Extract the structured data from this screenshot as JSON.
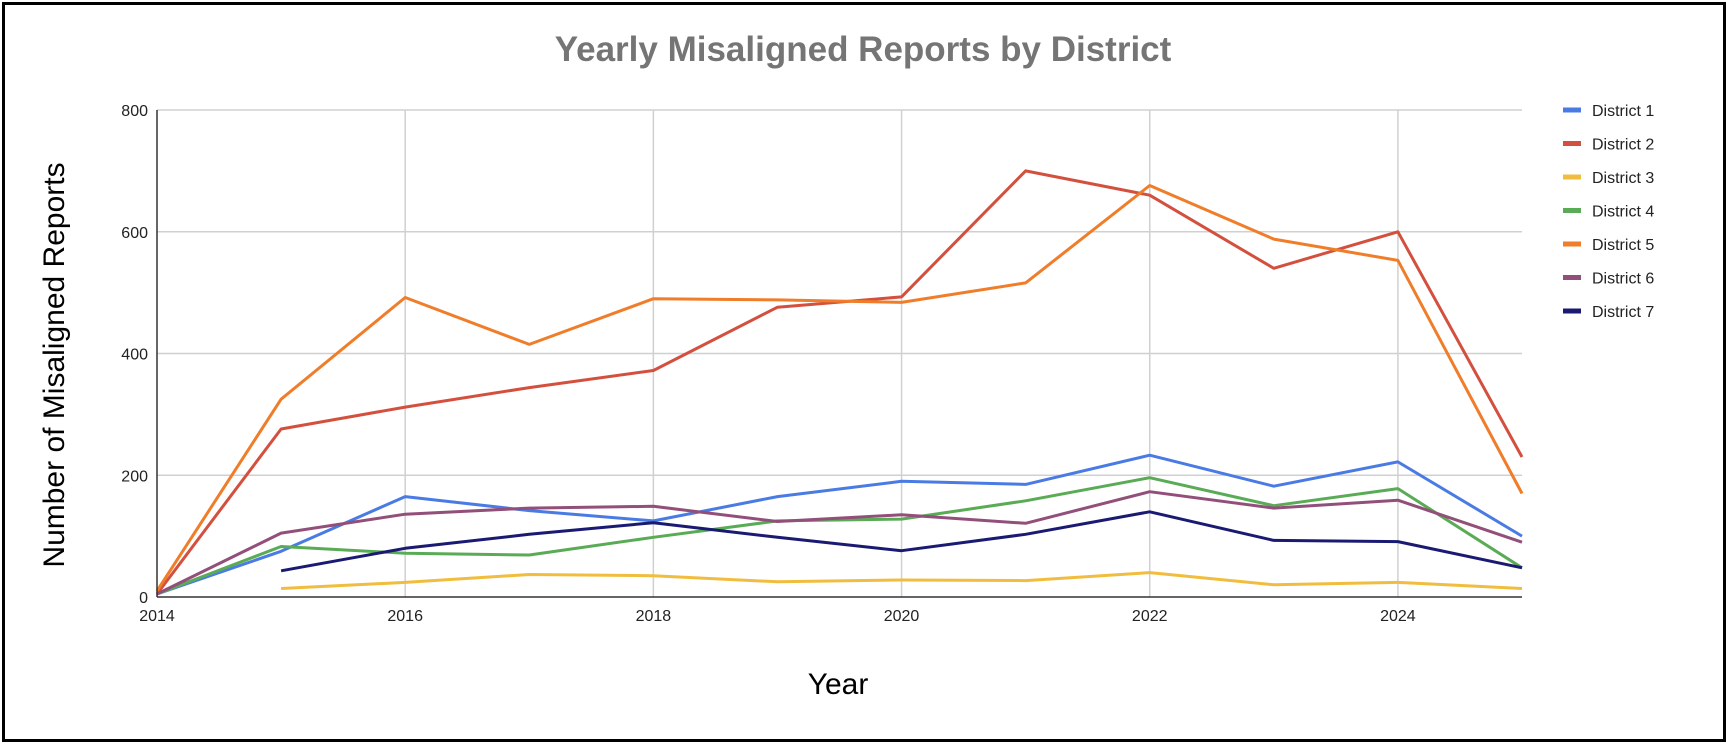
{
  "chart_data": {
    "type": "line",
    "title": "Yearly Misaligned Reports by District",
    "xlabel": "Year",
    "ylabel": "Number of Misaligned Reports",
    "xlim": [
      2014,
      2025
    ],
    "ylim": [
      0,
      800
    ],
    "xticks": [
      2014,
      2016,
      2018,
      2020,
      2022,
      2024
    ],
    "yticks": [
      0,
      200,
      400,
      600,
      800
    ],
    "grid": true,
    "legend_position": "right",
    "series": [
      {
        "name": "District 1",
        "color": "#4a7be4",
        "x": [
          2014,
          2015,
          2016,
          2017,
          2018,
          2019,
          2020,
          2021,
          2022,
          2023,
          2024,
          2025
        ],
        "values": [
          5,
          75,
          165,
          142,
          125,
          165,
          190,
          185,
          233,
          182,
          222,
          100
        ]
      },
      {
        "name": "District 2",
        "color": "#d4503e",
        "x": [
          2014,
          2015,
          2016,
          2017,
          2018,
          2019,
          2020,
          2021,
          2022,
          2023,
          2024,
          2025
        ],
        "values": [
          5,
          276,
          312,
          344,
          372,
          476,
          493,
          700,
          660,
          540,
          600,
          230
        ]
      },
      {
        "name": "District 3",
        "color": "#f0bd3e",
        "x": [
          2015,
          2016,
          2017,
          2018,
          2019,
          2020,
          2021,
          2022,
          2023,
          2024,
          2025
        ],
        "values": [
          14,
          24,
          37,
          35,
          25,
          28,
          27,
          40,
          20,
          24,
          14
        ]
      },
      {
        "name": "District 4",
        "color": "#5aab55",
        "x": [
          2014,
          2015,
          2016,
          2017,
          2018,
          2019,
          2020,
          2021,
          2022,
          2023,
          2024,
          2025
        ],
        "values": [
          5,
          83,
          72,
          69,
          98,
          125,
          128,
          158,
          196,
          150,
          178,
          48
        ]
      },
      {
        "name": "District 5",
        "color": "#ef7d2a",
        "x": [
          2014,
          2015,
          2016,
          2017,
          2018,
          2019,
          2020,
          2021,
          2022,
          2023,
          2024,
          2025
        ],
        "values": [
          10,
          325,
          492,
          415,
          490,
          488,
          484,
          516,
          676,
          588,
          553,
          170
        ]
      },
      {
        "name": "District 6",
        "color": "#924f7a",
        "x": [
          2014,
          2015,
          2016,
          2017,
          2018,
          2019,
          2020,
          2021,
          2022,
          2023,
          2024,
          2025
        ],
        "values": [
          5,
          105,
          136,
          146,
          149,
          124,
          135,
          121,
          173,
          146,
          159,
          90
        ]
      },
      {
        "name": "District 7",
        "color": "#1a1a73",
        "x": [
          2015,
          2016,
          2017,
          2018,
          2019,
          2020,
          2021,
          2022,
          2023,
          2024,
          2025
        ],
        "values": [
          43,
          80,
          103,
          122,
          98,
          76,
          103,
          140,
          93,
          91,
          48
        ]
      }
    ]
  }
}
